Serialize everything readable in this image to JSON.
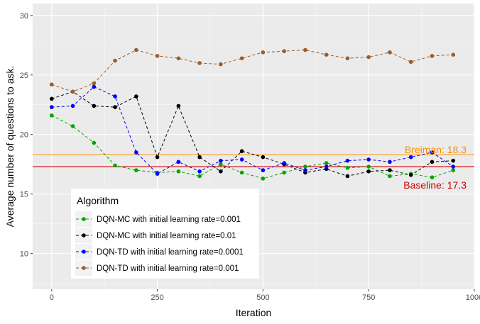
{
  "chart_data": {
    "type": "line",
    "title": "",
    "xlabel": "Iteration",
    "ylabel": "Average number of questions to ask.",
    "xlim": [
      -45,
      1000
    ],
    "ylim": [
      7,
      31
    ],
    "x_ticks": [
      0,
      250,
      500,
      750,
      1000
    ],
    "y_ticks": [
      10,
      15,
      20,
      25,
      30
    ],
    "grid": true,
    "background": "#ebebeb",
    "x": [
      0,
      50,
      100,
      150,
      200,
      250,
      300,
      350,
      400,
      450,
      500,
      550,
      600,
      650,
      700,
      750,
      800,
      850,
      900,
      950
    ],
    "series": [
      {
        "name": "DQN-MC with initial learning rate=0.001",
        "color": "#00a600",
        "values": [
          21.6,
          20.7,
          19.3,
          17.4,
          17.0,
          16.8,
          16.9,
          16.5,
          17.5,
          16.8,
          16.3,
          16.8,
          17.3,
          17.6,
          17.2,
          17.3,
          16.5,
          16.7,
          16.4,
          17.0
        ]
      },
      {
        "name": "DQN-MC with initial learning rate=0.01",
        "color": "#000000",
        "values": [
          23.0,
          23.6,
          22.4,
          22.3,
          23.2,
          18.1,
          22.4,
          18.1,
          16.9,
          18.6,
          18.1,
          17.5,
          16.8,
          17.1,
          16.5,
          16.9,
          17.0,
          16.6,
          17.7,
          17.8
        ]
      },
      {
        "name": "DQN-TD with initial learning rate=0.0001",
        "color": "#0000ff",
        "values": [
          22.3,
          22.4,
          24.0,
          23.2,
          18.5,
          16.7,
          17.7,
          16.9,
          17.8,
          17.9,
          17.0,
          17.6,
          17.0,
          17.3,
          17.8,
          17.9,
          17.7,
          18.1,
          18.5,
          17.3
        ]
      },
      {
        "name": "DQN-TD with initial learning rate=0.001",
        "color": "#9c5c2a",
        "values": [
          24.2,
          23.6,
          24.3,
          26.2,
          27.1,
          26.6,
          26.4,
          26.0,
          25.9,
          26.4,
          26.9,
          27.0,
          27.1,
          26.7,
          26.4,
          26.5,
          26.9,
          26.1,
          26.6,
          26.7
        ]
      }
    ],
    "reference_lines": [
      {
        "label": "Breiman: 18.3",
        "value": 18.3,
        "color": "#ff8c00"
      },
      {
        "label": "Baseline: 17.3",
        "value": 17.3,
        "color": "#cc0000"
      }
    ],
    "legend": {
      "title": "Algorithm",
      "position": "bottom-left inside plot"
    }
  }
}
